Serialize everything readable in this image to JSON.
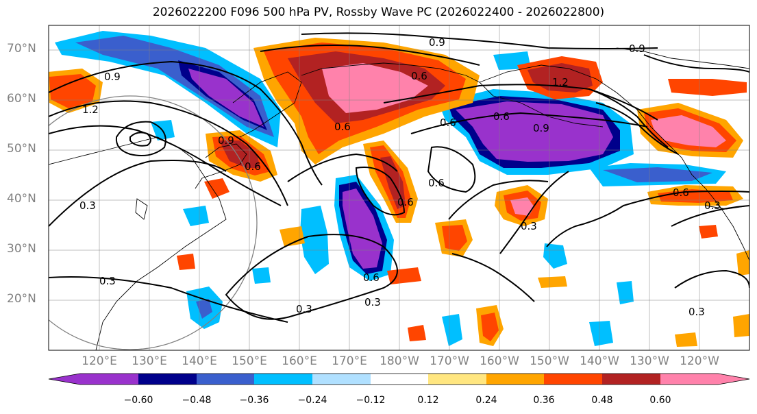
{
  "title": "2026022200 F096 500 hPa PV, Rossby Wave PC (2026022400 - 2026022800)",
  "lat_labels": [
    "70°N",
    "60°N",
    "50°N",
    "40°N",
    "30°N",
    "20°N"
  ],
  "lon_labels": [
    "120°E",
    "130°E",
    "140°E",
    "150°E",
    "160°E",
    "170°E",
    "180°W",
    "170°W",
    "160°W",
    "150°W",
    "140°W",
    "130°W",
    "120°W"
  ],
  "colorbar": {
    "tick_labels": [
      "−0.60",
      "−0.48",
      "−0.36",
      "−0.24",
      "−0.12",
      "0.12",
      "0.24",
      "0.36",
      "0.48",
      "0.60"
    ],
    "colors": [
      "#9932cc",
      "#00008b",
      "#3a5fcd",
      "#00bfff",
      "#b0e0ff",
      "#ffffff",
      "#ffe680",
      "#ffa500",
      "#ff4500",
      "#b22222",
      "#ff82ab"
    ]
  },
  "contour_labels": [
    "0.9",
    "0.9",
    "0.9",
    "0.6",
    "0.6",
    "0.6",
    "0.6",
    "0.6",
    "0.6",
    "0.6",
    "1.2",
    "1.2",
    "0.3",
    "0.3",
    "0.3",
    "0.3",
    "0.3",
    "0.3",
    "0.3",
    "0.6",
    "0.9",
    "0.6",
    "0.9"
  ]
}
